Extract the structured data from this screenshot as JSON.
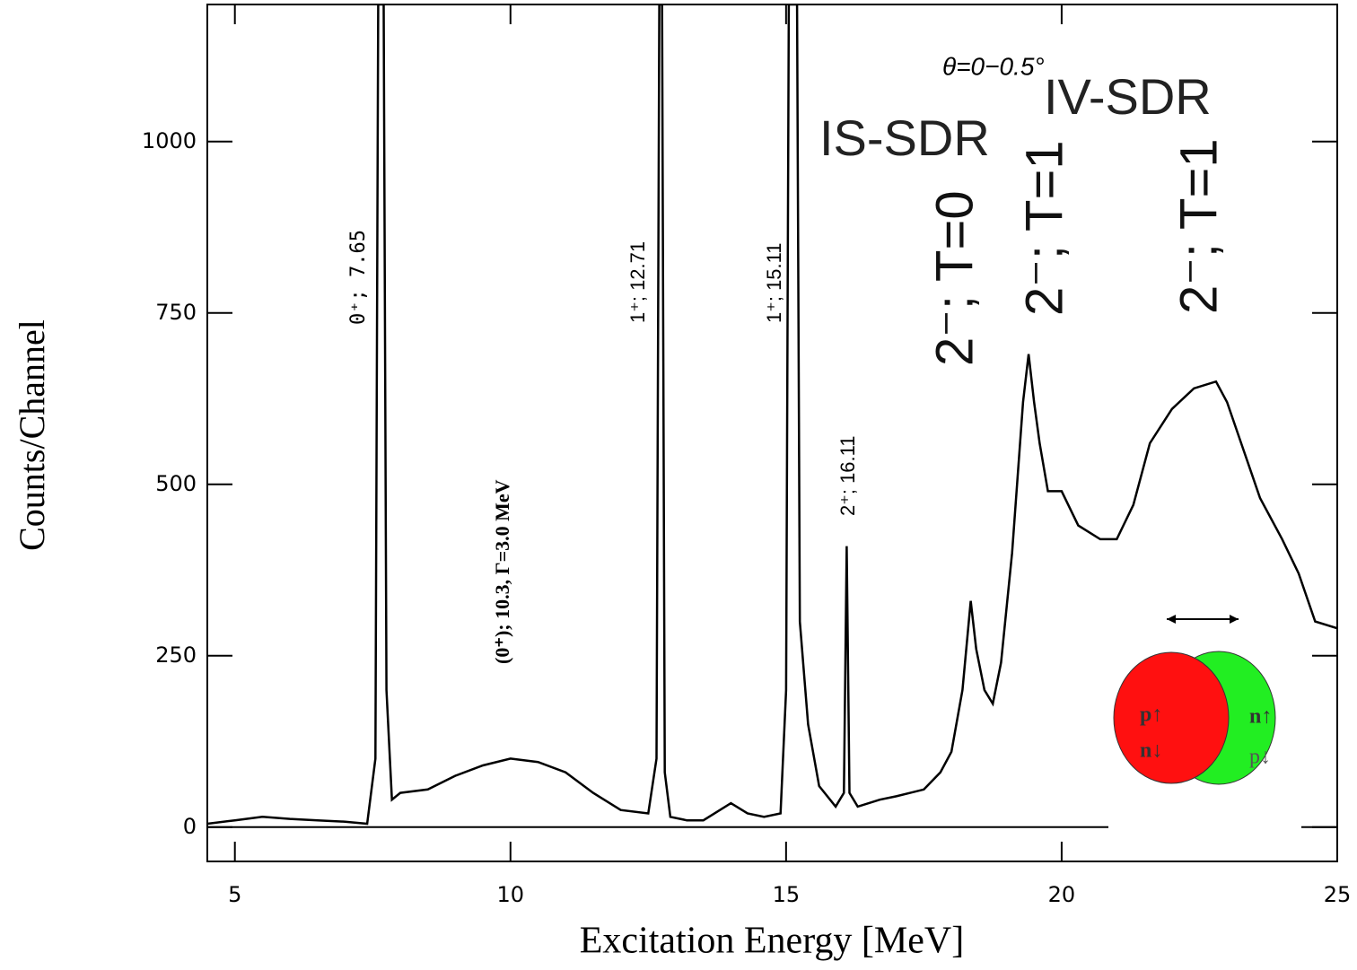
{
  "chart_data": {
    "type": "line",
    "xlabel": "Excitation Energy [MeV]",
    "ylabel": "Counts/Channel",
    "x": [
      4.5,
      5,
      5.5,
      6,
      6.5,
      7,
      7.4,
      7.55,
      7.6,
      7.7,
      7.75,
      7.85,
      8,
      8.5,
      9,
      9.5,
      10,
      10.5,
      11,
      11.5,
      12,
      12.5,
      12.65,
      12.7,
      12.75,
      12.8,
      12.9,
      13.2,
      13.5,
      14,
      14.3,
      14.6,
      14.9,
      15.0,
      15.05,
      15.2,
      15.25,
      15.4,
      15.6,
      15.9,
      16.05,
      16.1,
      16.15,
      16.3,
      16.7,
      17,
      17.5,
      17.8,
      18,
      18.2,
      18.35,
      18.45,
      18.6,
      18.75,
      18.9,
      19.1,
      19.3,
      19.4,
      19.5,
      19.6,
      19.75,
      20,
      20.3,
      20.7,
      21,
      21.3,
      21.6,
      22,
      22.4,
      22.8,
      23,
      23.3,
      23.6,
      24,
      24.3,
      24.6,
      25
    ],
    "values": [
      5,
      10,
      15,
      12,
      10,
      8,
      5,
      100,
      1200,
      1200,
      200,
      40,
      50,
      55,
      75,
      90,
      100,
      95,
      80,
      50,
      25,
      20,
      100,
      1200,
      1200,
      80,
      15,
      10,
      10,
      35,
      20,
      15,
      20,
      200,
      1200,
      1200,
      300,
      150,
      60,
      30,
      50,
      410,
      50,
      30,
      40,
      45,
      55,
      80,
      110,
      200,
      330,
      260,
      200,
      180,
      240,
      400,
      620,
      690,
      620,
      560,
      490,
      490,
      440,
      420,
      420,
      470,
      560,
      610,
      640,
      650,
      620,
      550,
      480,
      420,
      370,
      300,
      290
    ],
    "color": "#000000",
    "xlim": [
      4.5,
      25
    ],
    "ylim": [
      -50,
      1200
    ],
    "xticks": [
      5,
      10,
      15,
      20,
      25
    ],
    "yticks": [
      0,
      250,
      500,
      750,
      1000
    ],
    "annotations": [
      "θ=0−0.5°",
      "IS-SDR",
      "IV-SDR",
      "2⁻; T=0",
      "2⁻; T=1",
      "2⁻; T=1",
      "0⁺;  7.65",
      "(0⁺);  10.3,  Γ=3.0 MeV",
      "1⁺; 12.71",
      "1⁺; 15.11",
      "2⁺; 16.11",
      "p↑",
      "n↓",
      "n↑",
      "p↓"
    ]
  }
}
